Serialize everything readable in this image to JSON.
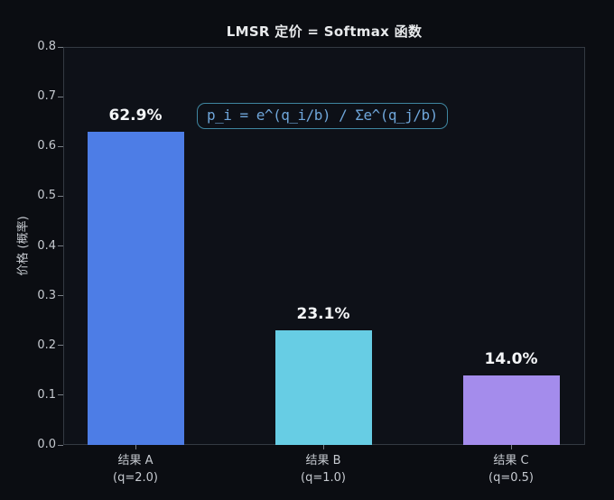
{
  "chart_data": {
    "type": "bar",
    "title": "LMSR 定价 = Softmax 函数",
    "ylabel": "价格 (概率)",
    "xlabel": "",
    "categories": [
      "结果 A\n(q=2.0)",
      "结果 B\n(q=1.0)",
      "结果 C\n(q=0.5)"
    ],
    "values": [
      0.629,
      0.231,
      0.14
    ],
    "data_labels": [
      "62.9%",
      "23.1%",
      "14.0%"
    ],
    "bar_colors": [
      "#4d7de6",
      "#67cde4",
      "#a48cec"
    ],
    "ylim": [
      0,
      0.8
    ],
    "yticks": [
      "0.0",
      "0.1",
      "0.2",
      "0.3",
      "0.4",
      "0.5",
      "0.6",
      "0.7",
      "0.8"
    ],
    "grid": false,
    "legend": null,
    "annotation": {
      "text": "p_i = e^(q_i/b) / Σe^(q_j/b)",
      "text_color": "#6fa6da",
      "border_color": "#3f86a0"
    }
  },
  "colors": {
    "background": "#0b0d12",
    "plot_background": "#0e1118",
    "spine": "#343a42",
    "tick_label": "#c6cad0",
    "title": "#e8eaec",
    "value_label": "#f4f6f8"
  }
}
